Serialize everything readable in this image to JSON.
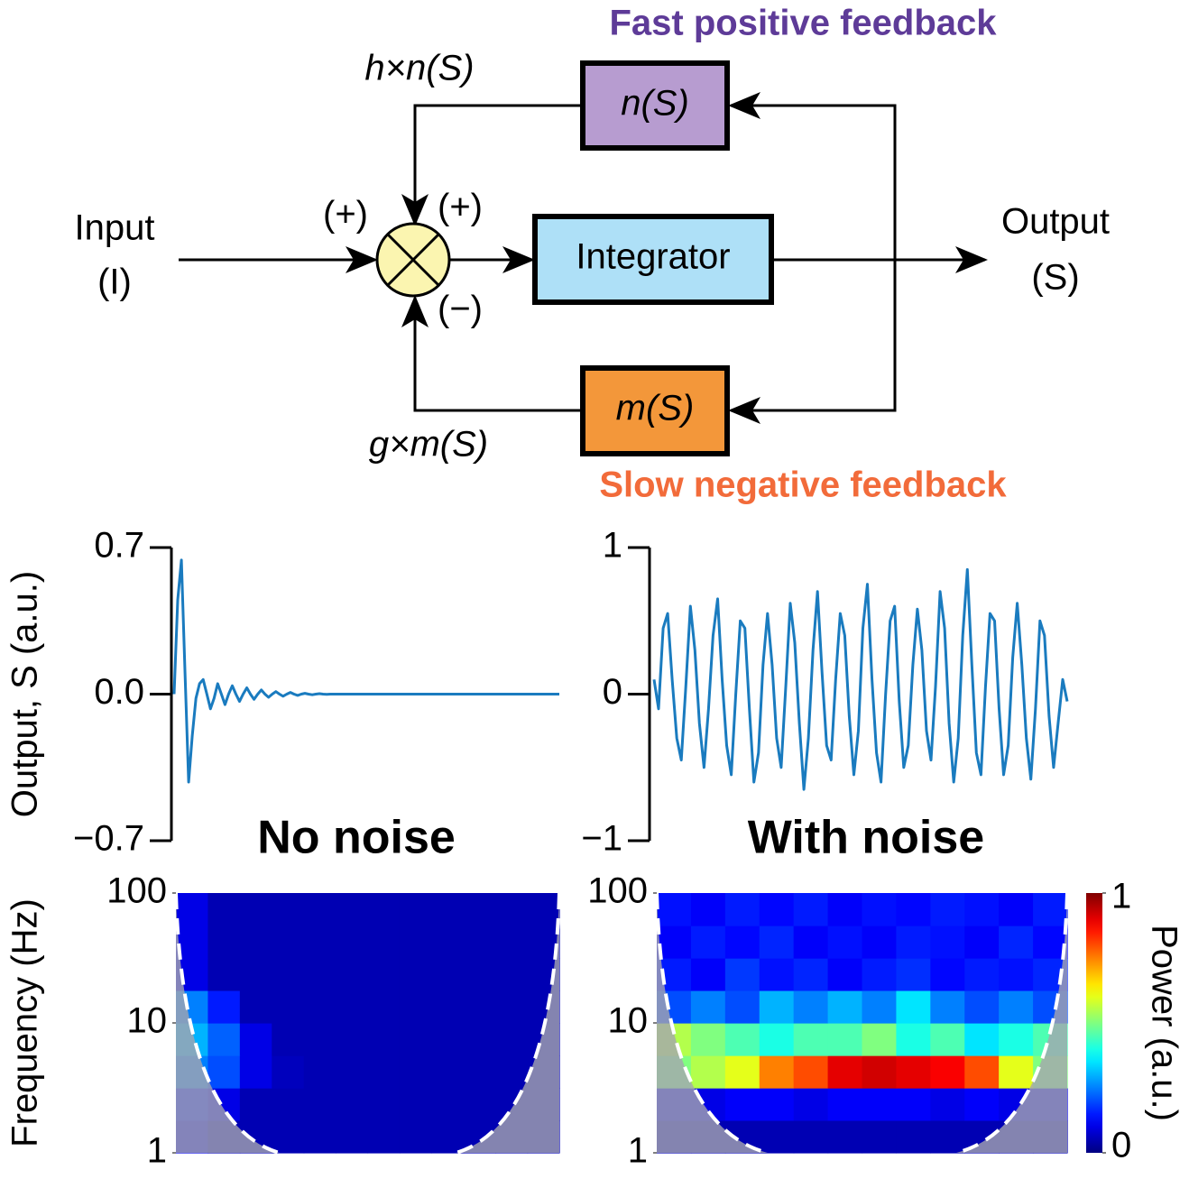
{
  "diagram": {
    "fast_title": "Fast positive feedback",
    "slow_title": "Slow negative feedback",
    "fast_gain": "h×n(S)",
    "slow_gain": "g×m(S)",
    "input": "Input",
    "input_symbol": "(I)",
    "output": "Output",
    "output_symbol": "(S)",
    "sign_input": "(+)",
    "sign_fast": "(+)",
    "sign_slow": "(−)",
    "fast_block": "n(S)",
    "integrator": "Integrator",
    "slow_block": "m(S)"
  },
  "chart_data": [
    {
      "type": "line",
      "title": "No noise",
      "ylabel": "Output, S (a.u.)",
      "color": "#1a7bbf",
      "ylim": [
        -0.7,
        0.7
      ],
      "yticks": [
        {
          "value": -0.7,
          "label": "−0.7"
        },
        {
          "value": 0,
          "label": "0.0"
        },
        0.7
      ],
      "values": [
        0.0,
        0.45,
        0.64,
        0.1,
        -0.42,
        -0.2,
        -0.02,
        0.05,
        0.07,
        0.0,
        -0.07,
        -0.02,
        0.05,
        0.0,
        -0.05,
        0.0,
        0.04,
        0.0,
        -0.035,
        0.0,
        0.03,
        0.0,
        -0.025,
        0.0,
        0.02,
        0.0,
        -0.015,
        0.0,
        0.012,
        0.0,
        -0.01,
        0.0,
        0.008,
        0.0,
        -0.006,
        0.0,
        0.004,
        0.0,
        -0.003,
        0.0,
        0.002,
        0.0,
        -0.001,
        0.0,
        0.0,
        0.0,
        0.0,
        0.0,
        0.0,
        0.0,
        0.0,
        0.0,
        0.0,
        0.0,
        0.0,
        0.0,
        0.0,
        0.0,
        0.0,
        0.0,
        0.0,
        0.0,
        0.0,
        0.0,
        0.0,
        0.0,
        0.0,
        0.0,
        0.0,
        0.0,
        0.0,
        0.0,
        0.0,
        0.0,
        0.0,
        0.0,
        0.0,
        0.0,
        0.0,
        0.0,
        0.0,
        0.0,
        0.0,
        0.0,
        0.0,
        0.0,
        0.0,
        0.0,
        0.0,
        0.0,
        0.0,
        0.0,
        0.0,
        0.0,
        0.0,
        0.0,
        0.0,
        0.0,
        0.0,
        0.0,
        0.0,
        0.0,
        0.0,
        0.0,
        0.0,
        0.0,
        0.0
      ]
    },
    {
      "type": "line",
      "title": "With noise",
      "color": "#1a7bbf",
      "ylim": [
        -1,
        1
      ],
      "yticks": [
        {
          "value": -1,
          "label": "−1"
        },
        0,
        1
      ],
      "values": [
        0.1,
        -0.1,
        0.45,
        0.55,
        0.1,
        -0.3,
        -0.45,
        0.05,
        0.6,
        0.3,
        -0.2,
        -0.5,
        -0.1,
        0.4,
        0.65,
        0.1,
        -0.35,
        -0.55,
        0.0,
        0.5,
        0.45,
        -0.1,
        -0.6,
        -0.4,
        0.2,
        0.55,
        0.2,
        -0.3,
        -0.5,
        0.05,
        0.62,
        0.35,
        -0.2,
        -0.65,
        -0.3,
        0.3,
        0.7,
        0.15,
        -0.35,
        -0.45,
        0.1,
        0.55,
        0.4,
        -0.15,
        -0.55,
        -0.25,
        0.45,
        0.75,
        0.1,
        -0.4,
        -0.6,
        0.0,
        0.5,
        0.6,
        -0.05,
        -0.5,
        -0.35,
        0.2,
        0.58,
        0.3,
        -0.25,
        -0.45,
        0.05,
        0.7,
        0.45,
        -0.2,
        -0.6,
        -0.3,
        0.4,
        0.85,
        0.2,
        -0.4,
        -0.55,
        0.05,
        0.55,
        0.5,
        -0.1,
        -0.55,
        -0.35,
        0.25,
        0.62,
        0.2,
        -0.3,
        -0.58,
        -0.1,
        0.5,
        0.4,
        -0.15,
        -0.5,
        -0.2,
        0.1,
        -0.05
      ]
    },
    {
      "type": "heatmap",
      "ylabel": "Frequency (Hz)",
      "log_y": true,
      "ylim": [
        1,
        100
      ],
      "yticks": [
        1,
        10,
        100
      ],
      "clim": [
        0,
        1
      ],
      "ybins": [
        1,
        1.78,
        3.16,
        5.62,
        10,
        17.8,
        31.6,
        56.2,
        100
      ],
      "z": [
        [
          0.1,
          0.05,
          0.05,
          0.05,
          0.05,
          0.05,
          0.05,
          0.05,
          0.05,
          0.05,
          0.05,
          0.05
        ],
        [
          0.15,
          0.1,
          0.05,
          0.05,
          0.05,
          0.05,
          0.05,
          0.05,
          0.05,
          0.05,
          0.05,
          0.05
        ],
        [
          0.25,
          0.2,
          0.1,
          0.06,
          0.05,
          0.05,
          0.05,
          0.05,
          0.05,
          0.05,
          0.05,
          0.05
        ],
        [
          0.3,
          0.22,
          0.1,
          0.05,
          0.05,
          0.05,
          0.05,
          0.05,
          0.05,
          0.05,
          0.05,
          0.05
        ],
        [
          0.25,
          0.15,
          0.05,
          0.05,
          0.05,
          0.05,
          0.05,
          0.05,
          0.05,
          0.05,
          0.05,
          0.05
        ],
        [
          0.1,
          0.05,
          0.05,
          0.05,
          0.05,
          0.05,
          0.05,
          0.05,
          0.05,
          0.05,
          0.05,
          0.05
        ],
        [
          0.1,
          0.05,
          0.05,
          0.05,
          0.05,
          0.05,
          0.05,
          0.05,
          0.05,
          0.05,
          0.05,
          0.05
        ],
        [
          0.1,
          0.05,
          0.05,
          0.05,
          0.05,
          0.05,
          0.05,
          0.05,
          0.05,
          0.05,
          0.05,
          0.05
        ]
      ]
    },
    {
      "type": "heatmap",
      "log_y": true,
      "colorbar": true,
      "colorbar_label": "Power (a.u.)",
      "ylim": [
        1,
        100
      ],
      "yticks": [
        1,
        10,
        100
      ],
      "clim": [
        0,
        1
      ],
      "cticks": [
        0,
        1
      ],
      "ybins": [
        1,
        1.78,
        3.16,
        5.62,
        10,
        17.8,
        31.6,
        56.2,
        100
      ],
      "z": [
        [
          0.05,
          0.05,
          0.05,
          0.05,
          0.05,
          0.05,
          0.05,
          0.05,
          0.05,
          0.05,
          0.05,
          0.05
        ],
        [
          0.1,
          0.1,
          0.12,
          0.12,
          0.1,
          0.12,
          0.12,
          0.12,
          0.1,
          0.12,
          0.1,
          0.1
        ],
        [
          0.5,
          0.55,
          0.6,
          0.75,
          0.8,
          0.9,
          0.92,
          0.9,
          0.88,
          0.8,
          0.6,
          0.5
        ],
        [
          0.55,
          0.5,
          0.45,
          0.4,
          0.45,
          0.45,
          0.5,
          0.4,
          0.45,
          0.35,
          0.4,
          0.45
        ],
        [
          0.2,
          0.25,
          0.2,
          0.3,
          0.25,
          0.3,
          0.25,
          0.35,
          0.25,
          0.2,
          0.25,
          0.2
        ],
        [
          0.15,
          0.12,
          0.18,
          0.14,
          0.16,
          0.12,
          0.15,
          0.17,
          0.13,
          0.15,
          0.14,
          0.16
        ],
        [
          0.12,
          0.15,
          0.13,
          0.16,
          0.12,
          0.14,
          0.12,
          0.15,
          0.14,
          0.12,
          0.16,
          0.13
        ],
        [
          0.14,
          0.12,
          0.15,
          0.13,
          0.15,
          0.12,
          0.14,
          0.13,
          0.15,
          0.14,
          0.12,
          0.15
        ]
      ]
    }
  ]
}
